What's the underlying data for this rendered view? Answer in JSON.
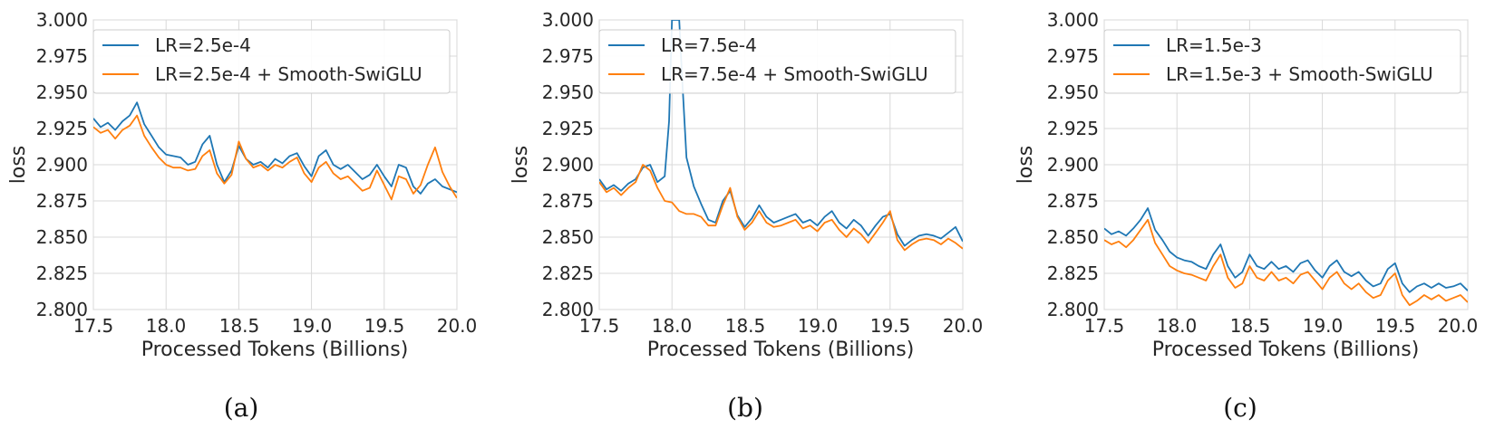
{
  "colors": {
    "blue": "#1f77b4",
    "orange": "#ff7f0e",
    "grid": "#d9d9d9",
    "axis_text": "#262626"
  },
  "chart_data": [
    {
      "type": "line",
      "caption": "(a)",
      "xlabel": "Processed Tokens (Billions)",
      "ylabel": "loss",
      "xlim": [
        17.5,
        20.0
      ],
      "ylim": [
        2.8,
        3.0
      ],
      "xticks": [
        "17.5",
        "18.0",
        "18.5",
        "19.0",
        "19.5",
        "20.0"
      ],
      "yticks": [
        "2.800",
        "2.825",
        "2.850",
        "2.875",
        "2.900",
        "2.925",
        "2.950",
        "2.975",
        "3.000"
      ],
      "grid": true,
      "legend_position": "top-left",
      "series": [
        {
          "name": "LR=2.5e-4",
          "color": "#1f77b4",
          "x": [
            17.5,
            17.55,
            17.6,
            17.65,
            17.7,
            17.75,
            17.8,
            17.85,
            17.9,
            17.95,
            18.0,
            18.05,
            18.1,
            18.15,
            18.2,
            18.25,
            18.3,
            18.35,
            18.4,
            18.45,
            18.5,
            18.55,
            18.6,
            18.65,
            18.7,
            18.75,
            18.8,
            18.85,
            18.9,
            18.95,
            19.0,
            19.05,
            19.1,
            19.15,
            19.2,
            19.25,
            19.3,
            19.35,
            19.4,
            19.45,
            19.5,
            19.55,
            19.6,
            19.65,
            19.7,
            19.75,
            19.8,
            19.85,
            19.9,
            19.95,
            20.0
          ],
          "y": [
            2.932,
            2.926,
            2.929,
            2.924,
            2.93,
            2.934,
            2.943,
            2.928,
            2.92,
            2.912,
            2.907,
            2.906,
            2.905,
            2.9,
            2.902,
            2.914,
            2.92,
            2.9,
            2.888,
            2.896,
            2.913,
            2.904,
            2.9,
            2.902,
            2.898,
            2.904,
            2.901,
            2.906,
            2.908,
            2.899,
            2.892,
            2.906,
            2.91,
            2.9,
            2.897,
            2.9,
            2.895,
            2.89,
            2.893,
            2.9,
            2.892,
            2.885,
            2.9,
            2.898,
            2.885,
            2.88,
            2.887,
            2.89,
            2.885,
            2.883,
            2.881
          ]
        },
        {
          "name": "LR=2.5e-4 + Smooth-SwiGLU",
          "color": "#ff7f0e",
          "x": [
            17.5,
            17.55,
            17.6,
            17.65,
            17.7,
            17.75,
            17.8,
            17.85,
            17.9,
            17.95,
            18.0,
            18.05,
            18.1,
            18.15,
            18.2,
            18.25,
            18.3,
            18.35,
            18.4,
            18.45,
            18.5,
            18.55,
            18.6,
            18.65,
            18.7,
            18.75,
            18.8,
            18.85,
            18.9,
            18.95,
            19.0,
            19.05,
            19.1,
            19.15,
            19.2,
            19.25,
            19.3,
            19.35,
            19.4,
            19.45,
            19.5,
            19.55,
            19.6,
            19.65,
            19.7,
            19.75,
            19.8,
            19.85,
            19.9,
            19.95,
            20.0
          ],
          "y": [
            2.926,
            2.922,
            2.924,
            2.918,
            2.924,
            2.927,
            2.934,
            2.92,
            2.912,
            2.905,
            2.9,
            2.898,
            2.898,
            2.896,
            2.897,
            2.906,
            2.91,
            2.894,
            2.887,
            2.893,
            2.916,
            2.904,
            2.898,
            2.9,
            2.896,
            2.9,
            2.898,
            2.902,
            2.905,
            2.894,
            2.888,
            2.898,
            2.902,
            2.894,
            2.89,
            2.892,
            2.887,
            2.882,
            2.884,
            2.896,
            2.886,
            2.876,
            2.892,
            2.89,
            2.88,
            2.886,
            2.9,
            2.912,
            2.895,
            2.885,
            2.877
          ]
        }
      ]
    },
    {
      "type": "line",
      "caption": "(b)",
      "xlabel": "Processed Tokens (Billions)",
      "ylabel": "loss",
      "xlim": [
        17.5,
        20.0
      ],
      "ylim": [
        2.8,
        3.0
      ],
      "xticks": [
        "17.5",
        "18.0",
        "18.5",
        "19.0",
        "19.5",
        "20.0"
      ],
      "yticks": [
        "2.800",
        "2.825",
        "2.850",
        "2.875",
        "2.900",
        "2.925",
        "2.950",
        "2.975",
        "3.000"
      ],
      "grid": true,
      "legend_position": "top-left",
      "series": [
        {
          "name": "LR=7.5e-4",
          "color": "#1f77b4",
          "x": [
            17.5,
            17.55,
            17.6,
            17.65,
            17.7,
            17.75,
            17.8,
            17.85,
            17.9,
            17.95,
            17.98,
            18.0,
            18.05,
            18.07,
            18.1,
            18.15,
            18.2,
            18.25,
            18.3,
            18.35,
            18.4,
            18.45,
            18.5,
            18.55,
            18.6,
            18.65,
            18.7,
            18.75,
            18.8,
            18.85,
            18.9,
            18.95,
            19.0,
            19.05,
            19.1,
            19.15,
            19.2,
            19.25,
            19.3,
            19.35,
            19.4,
            19.45,
            19.5,
            19.55,
            19.6,
            19.65,
            19.7,
            19.75,
            19.8,
            19.85,
            19.9,
            19.95,
            20.0
          ],
          "y": [
            2.89,
            2.883,
            2.886,
            2.882,
            2.887,
            2.89,
            2.898,
            2.9,
            2.888,
            2.892,
            2.93,
            3.0,
            3.0,
            2.96,
            2.905,
            2.885,
            2.873,
            2.862,
            2.86,
            2.875,
            2.882,
            2.865,
            2.857,
            2.863,
            2.872,
            2.864,
            2.86,
            2.862,
            2.864,
            2.866,
            2.86,
            2.862,
            2.858,
            2.864,
            2.868,
            2.86,
            2.856,
            2.862,
            2.858,
            2.851,
            2.858,
            2.864,
            2.866,
            2.852,
            2.844,
            2.848,
            2.851,
            2.852,
            2.851,
            2.849,
            2.853,
            2.857,
            2.847
          ]
        },
        {
          "name": "LR=7.5e-4 + Smooth-SwiGLU",
          "color": "#ff7f0e",
          "x": [
            17.5,
            17.55,
            17.6,
            17.65,
            17.7,
            17.75,
            17.8,
            17.85,
            17.9,
            17.95,
            18.0,
            18.05,
            18.1,
            18.15,
            18.2,
            18.25,
            18.3,
            18.35,
            18.4,
            18.45,
            18.5,
            18.55,
            18.6,
            18.65,
            18.7,
            18.75,
            18.8,
            18.85,
            18.9,
            18.95,
            19.0,
            19.05,
            19.1,
            19.15,
            19.2,
            19.25,
            19.3,
            19.35,
            19.4,
            19.45,
            19.5,
            19.55,
            19.6,
            19.65,
            19.7,
            19.75,
            19.8,
            19.85,
            19.9,
            19.95,
            20.0
          ],
          "y": [
            2.888,
            2.881,
            2.884,
            2.879,
            2.884,
            2.888,
            2.9,
            2.896,
            2.884,
            2.875,
            2.874,
            2.868,
            2.866,
            2.866,
            2.864,
            2.858,
            2.858,
            2.872,
            2.884,
            2.864,
            2.855,
            2.86,
            2.868,
            2.86,
            2.857,
            2.858,
            2.86,
            2.862,
            2.856,
            2.858,
            2.854,
            2.86,
            2.862,
            2.855,
            2.85,
            2.856,
            2.852,
            2.846,
            2.853,
            2.86,
            2.868,
            2.848,
            2.841,
            2.845,
            2.848,
            2.849,
            2.848,
            2.845,
            2.849,
            2.846,
            2.842
          ]
        }
      ]
    },
    {
      "type": "line",
      "caption": "(c)",
      "xlabel": "Processed Tokens (Billions)",
      "ylabel": "loss",
      "xlim": [
        17.5,
        20.0
      ],
      "ylim": [
        2.8,
        3.0
      ],
      "xticks": [
        "17.5",
        "18.0",
        "18.5",
        "19.0",
        "19.5",
        "20.0"
      ],
      "yticks": [
        "2.800",
        "2.825",
        "2.850",
        "2.875",
        "2.900",
        "2.925",
        "2.950",
        "2.975",
        "3.000"
      ],
      "grid": true,
      "legend_position": "top-left",
      "series": [
        {
          "name": "LR=1.5e-3",
          "color": "#1f77b4",
          "x": [
            17.5,
            17.55,
            17.6,
            17.65,
            17.7,
            17.75,
            17.8,
            17.85,
            17.9,
            17.95,
            18.0,
            18.05,
            18.1,
            18.15,
            18.2,
            18.25,
            18.3,
            18.35,
            18.4,
            18.45,
            18.5,
            18.55,
            18.6,
            18.65,
            18.7,
            18.75,
            18.8,
            18.85,
            18.9,
            18.95,
            19.0,
            19.05,
            19.1,
            19.15,
            19.2,
            19.25,
            19.3,
            19.35,
            19.4,
            19.45,
            19.5,
            19.55,
            19.6,
            19.65,
            19.7,
            19.75,
            19.8,
            19.85,
            19.9,
            19.95,
            20.0
          ],
          "y": [
            2.856,
            2.852,
            2.854,
            2.851,
            2.856,
            2.862,
            2.87,
            2.855,
            2.848,
            2.84,
            2.836,
            2.834,
            2.833,
            2.83,
            2.828,
            2.838,
            2.845,
            2.83,
            2.822,
            2.826,
            2.838,
            2.83,
            2.828,
            2.833,
            2.828,
            2.83,
            2.826,
            2.832,
            2.834,
            2.827,
            2.822,
            2.83,
            2.834,
            2.826,
            2.823,
            2.826,
            2.82,
            2.816,
            2.818,
            2.828,
            2.832,
            2.818,
            2.812,
            2.816,
            2.818,
            2.815,
            2.818,
            2.815,
            2.816,
            2.818,
            2.813
          ]
        },
        {
          "name": "LR=1.5e-3 + Smooth-SwiGLU",
          "color": "#ff7f0e",
          "x": [
            17.5,
            17.55,
            17.6,
            17.65,
            17.7,
            17.75,
            17.8,
            17.85,
            17.9,
            17.95,
            18.0,
            18.05,
            18.1,
            18.15,
            18.2,
            18.25,
            18.3,
            18.35,
            18.4,
            18.45,
            18.5,
            18.55,
            18.6,
            18.65,
            18.7,
            18.75,
            18.8,
            18.85,
            18.9,
            18.95,
            19.0,
            19.05,
            19.1,
            19.15,
            19.2,
            19.25,
            19.3,
            19.35,
            19.4,
            19.45,
            19.5,
            19.55,
            19.6,
            19.65,
            19.7,
            19.75,
            19.8,
            19.85,
            19.9,
            19.95,
            20.0
          ],
          "y": [
            2.848,
            2.845,
            2.847,
            2.843,
            2.848,
            2.855,
            2.862,
            2.846,
            2.838,
            2.83,
            2.827,
            2.825,
            2.824,
            2.822,
            2.82,
            2.83,
            2.838,
            2.822,
            2.815,
            2.818,
            2.83,
            2.822,
            2.82,
            2.826,
            2.82,
            2.822,
            2.818,
            2.824,
            2.826,
            2.82,
            2.814,
            2.822,
            2.826,
            2.818,
            2.814,
            2.818,
            2.812,
            2.808,
            2.81,
            2.82,
            2.825,
            2.81,
            2.803,
            2.806,
            2.81,
            2.807,
            2.81,
            2.806,
            2.808,
            2.81,
            2.805
          ]
        }
      ]
    }
  ]
}
